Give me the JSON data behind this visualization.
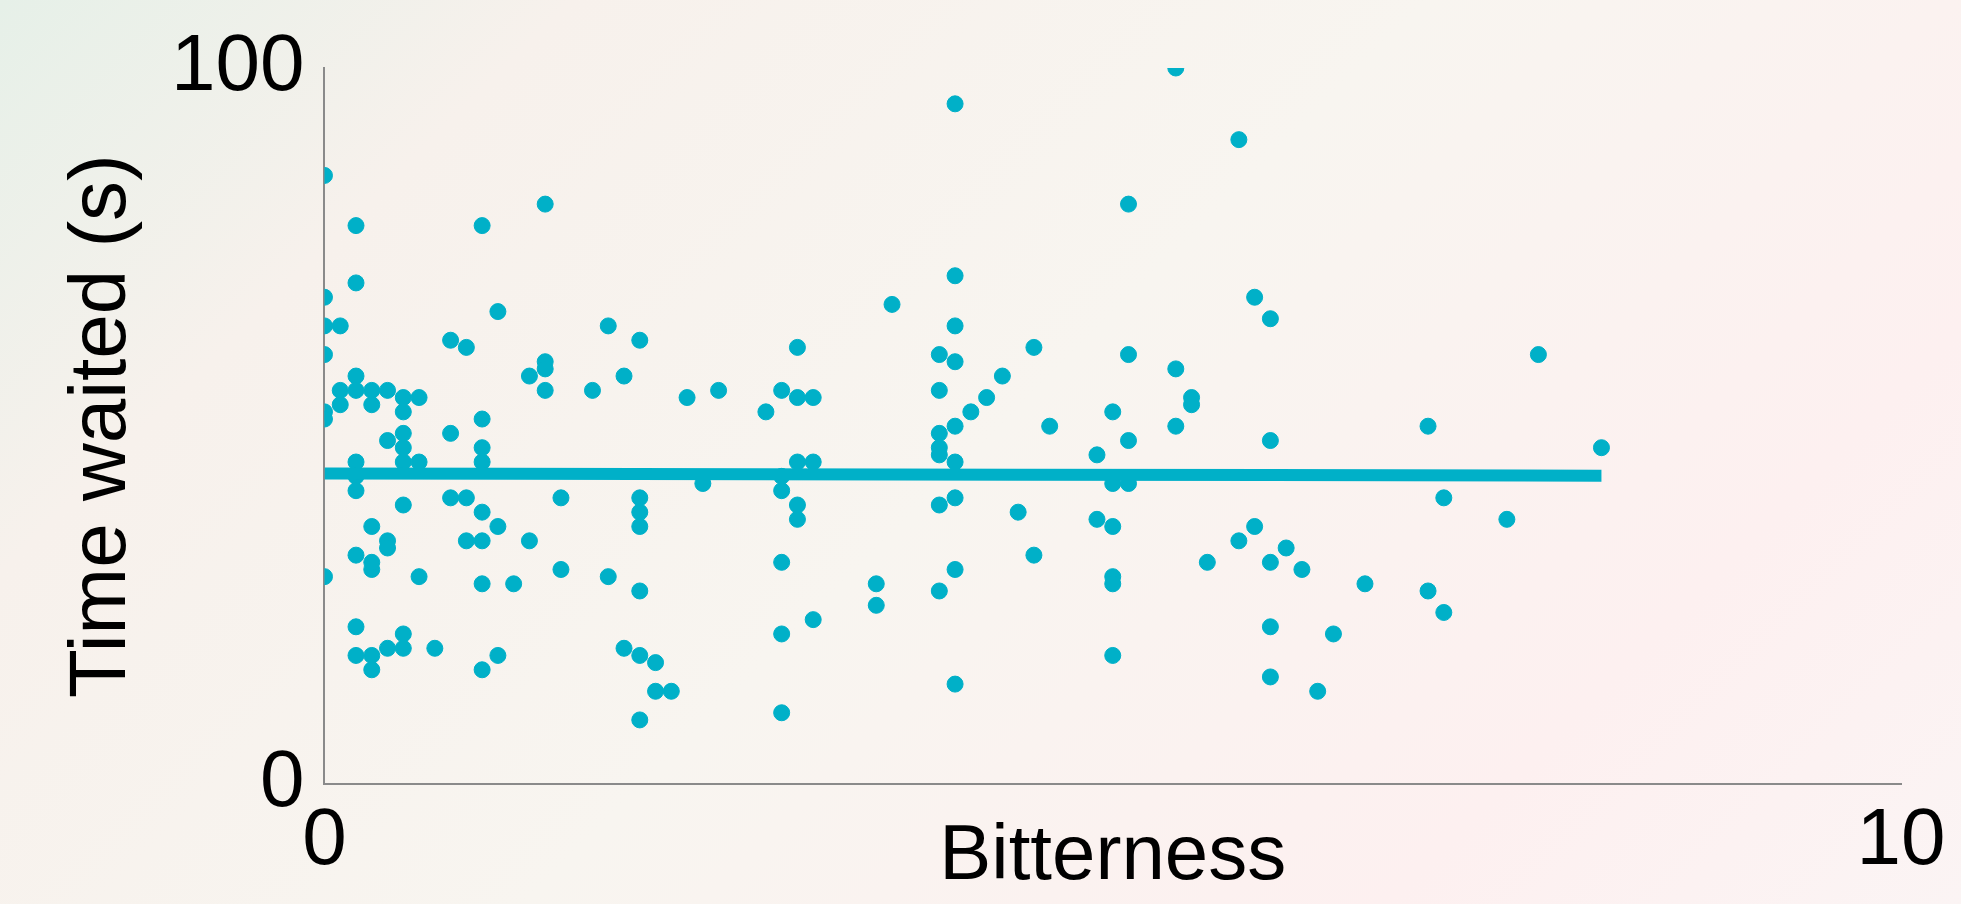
{
  "chart_data": {
    "type": "scatter",
    "xlabel": "Bitterness",
    "ylabel": "Time waited (s)",
    "xlim": [
      0,
      10
    ],
    "xticks": [
      0,
      10
    ],
    "ylim": [
      0,
      100
    ],
    "yticks": [
      0,
      100
    ],
    "grid": false,
    "legend": false,
    "series": [
      {
        "marker": "circle",
        "color": "#00b0c8",
        "x": [
          0,
          0,
          0,
          0,
          0,
          0,
          0,
          0.1,
          0.1,
          0.1,
          0.2,
          0.2,
          0.2,
          0.2,
          0.2,
          0.2,
          0.2,
          0.2,
          0.2,
          0.2,
          0.3,
          0.3,
          0.3,
          0.3,
          0.3,
          0.3,
          0.3,
          0.4,
          0.4,
          0.4,
          0.4,
          0.4,
          0.5,
          0.5,
          0.5,
          0.5,
          0.5,
          0.5,
          0.5,
          0.5,
          0.6,
          0.6,
          0.6,
          0.7,
          0.8,
          0.8,
          0.8,
          0.9,
          0.9,
          0.9,
          1.0,
          1.0,
          1.0,
          1.0,
          1.0,
          1.0,
          1.0,
          1.0,
          1.1,
          1.1,
          1.1,
          1.2,
          1.3,
          1.3,
          1.4,
          1.4,
          1.4,
          1.4,
          1.5,
          1.5,
          1.7,
          1.8,
          1.8,
          1.9,
          1.9,
          2.0,
          2.0,
          2.0,
          2.0,
          2.0,
          2.0,
          2.0,
          2.1,
          2.1,
          2.2,
          2.3,
          2.4,
          2.5,
          2.8,
          2.9,
          2.9,
          2.9,
          2.9,
          2.9,
          2.9,
          3.0,
          3.0,
          3.0,
          3.0,
          3.0,
          3.1,
          3.1,
          3.1,
          3.5,
          3.5,
          3.6,
          3.9,
          3.9,
          3.9,
          3.9,
          3.9,
          3.9,
          3.9,
          4.0,
          4.0,
          4.0,
          4.0,
          4.0,
          4.0,
          4.0,
          4.0,
          4.0,
          4.1,
          4.2,
          4.3,
          4.4,
          4.5,
          4.5,
          4.6,
          4.9,
          4.9,
          5.0,
          5.0,
          5.0,
          5.0,
          5.0,
          5.0,
          5.1,
          5.1,
          5.1,
          5.1,
          5.4,
          5.4,
          5.4,
          5.5,
          5.5,
          5.6,
          5.8,
          5.8,
          5.9,
          5.9,
          6.0,
          6.0,
          6.0,
          6.0,
          6.0,
          6.1,
          6.2,
          6.3,
          6.4,
          6.6,
          7.0,
          7.0,
          7.1,
          7.1,
          7.5,
          7.7,
          8.1
        ],
        "values": [
          85,
          68,
          64,
          60,
          52,
          51,
          29,
          64,
          55,
          53,
          78,
          70,
          57,
          55,
          45,
          43,
          41,
          32,
          22,
          18,
          55,
          53,
          30,
          36,
          31,
          18,
          16,
          55,
          48,
          34,
          33,
          19,
          54,
          52,
          49,
          47,
          45,
          39,
          21,
          19,
          54,
          45,
          29,
          19,
          62,
          49,
          40,
          61,
          40,
          34,
          78,
          51,
          47,
          45,
          38,
          34,
          28,
          16,
          66,
          36,
          18,
          28,
          57,
          34,
          81,
          59,
          58,
          55,
          40,
          30,
          55,
          64,
          29,
          57,
          19,
          62,
          40,
          38,
          36,
          27,
          18,
          9,
          17,
          13,
          13,
          54,
          42,
          55,
          52,
          55,
          43,
          41,
          31,
          21,
          10,
          61,
          54,
          45,
          39,
          37,
          54,
          45,
          23,
          28,
          25,
          67,
          60,
          55,
          49,
          47,
          46,
          39,
          27,
          95,
          71,
          64,
          59,
          50,
          45,
          40,
          30,
          14,
          52,
          54,
          57,
          38,
          61,
          32,
          50,
          46,
          37,
          52,
          42,
          36,
          29,
          28,
          18,
          81,
          60,
          48,
          42,
          100,
          58,
          50,
          54,
          53,
          31,
          90,
          34,
          68,
          36,
          65,
          48,
          31,
          22,
          15,
          33,
          30,
          13,
          21,
          28,
          50,
          27,
          40,
          24,
          37,
          60,
          47
        ]
      },
      {
        "type": "line",
        "marker": "none",
        "color": "#00b0c8",
        "x": [
          0,
          8.1
        ],
        "values": [
          43.4,
          43.1
        ]
      }
    ]
  }
}
